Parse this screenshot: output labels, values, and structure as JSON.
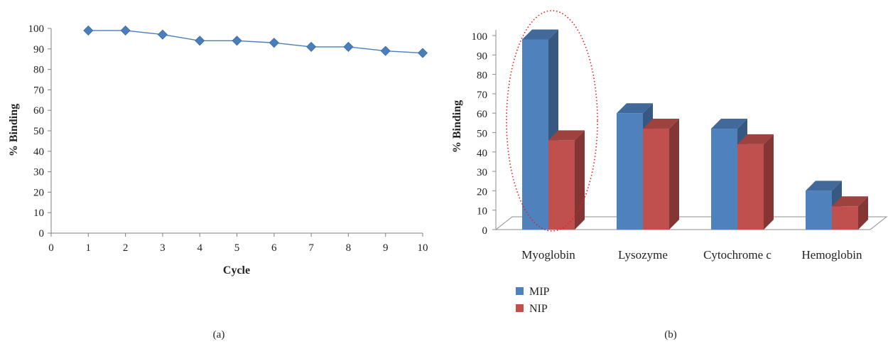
{
  "panels": [
    {
      "label": "(a)"
    },
    {
      "label": "(b)"
    }
  ],
  "colors": {
    "line": "#4a7ebb",
    "mip": "#4f81bd",
    "nip": "#c0504d",
    "highlight": "#e02020"
  },
  "chart_data": [
    {
      "type": "line",
      "xlabel": "Cycle",
      "ylabel": "% Binding",
      "xlim": [
        0,
        10
      ],
      "ylim": [
        0,
        100
      ],
      "xticks": [
        "0",
        "1",
        "2",
        "3",
        "4",
        "5",
        "6",
        "7",
        "8",
        "9",
        "10"
      ],
      "yticks": [
        "0",
        "10",
        "20",
        "30",
        "40",
        "50",
        "60",
        "70",
        "80",
        "90",
        "100"
      ],
      "marker": "diamond",
      "grid": false,
      "x": [
        1,
        2,
        3,
        4,
        5,
        6,
        7,
        8,
        9,
        10
      ],
      "y": [
        99,
        99,
        97,
        94,
        94,
        93,
        91,
        91,
        89,
        88
      ]
    },
    {
      "type": "bar",
      "style": "3d-clustered",
      "ylabel": "% Binding",
      "ylim": [
        0,
        100
      ],
      "yticks": [
        "0",
        "10",
        "20",
        "30",
        "40",
        "50",
        "60",
        "70",
        "80",
        "90",
        "100"
      ],
      "categories": [
        "Myoglobin",
        "Lysozyme",
        "Cytochrome c",
        "Hemoglobin"
      ],
      "series": [
        {
          "name": "MIP",
          "values": [
            98,
            60,
            52,
            20
          ]
        },
        {
          "name": "NIP",
          "values": [
            46,
            52,
            44,
            12
          ]
        }
      ],
      "legend_position": "bottom-left",
      "highlight": "Myoglobin"
    }
  ]
}
